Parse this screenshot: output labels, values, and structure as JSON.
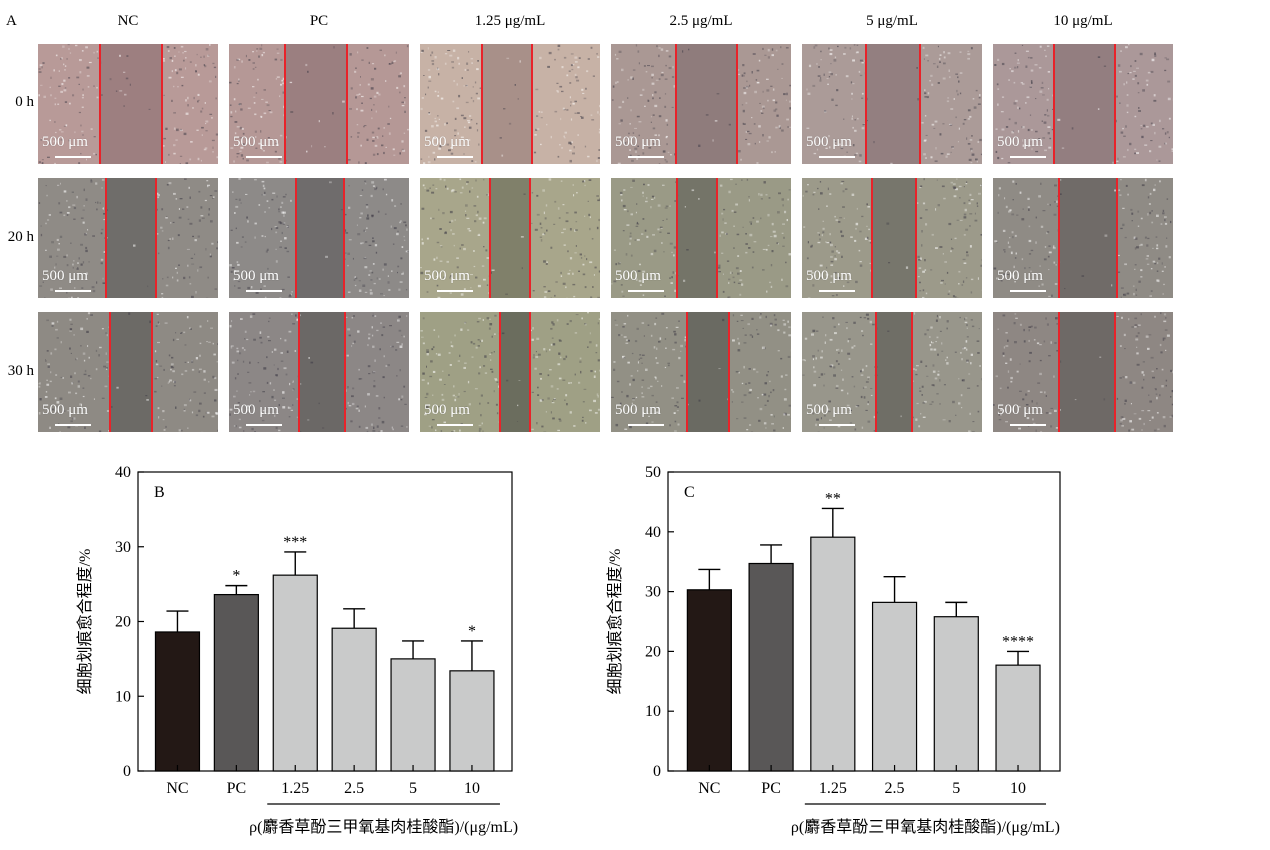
{
  "figure_a": {
    "panel_label": "A",
    "columns": [
      "NC",
      "PC",
      "1.25 μg/mL",
      "2.5 μg/mL",
      "5 μg/mL",
      "10 μg/mL"
    ],
    "rows": [
      "0 h",
      "20 h",
      "30 h"
    ],
    "scale_bar": "500 μm",
    "wound_line_color": "#e8232a",
    "row_tones": [
      [
        "#b89a98",
        "#b59896",
        "#c7b2a6",
        "#aa9894",
        "#ab9b98",
        "#ab9899"
      ],
      [
        "#8f8b86",
        "#8d8a88",
        "#a8a68b",
        "#9a9a86",
        "#9c9a8a",
        "#8f8b85"
      ],
      [
        "#8e8a84",
        "#8c8786",
        "#9fa085",
        "#929085",
        "#98968b",
        "#8e8783"
      ]
    ],
    "wound_tones": [
      [
        "#9d7f80",
        "#9b7f80",
        "#a89089",
        "#8f7c7c",
        "#937f80",
        "#937e80"
      ],
      [
        "#6f6d6a",
        "#6f6c6c",
        "#80806a",
        "#747468",
        "#77766c",
        "#706b68"
      ],
      [
        "#6c6a66",
        "#6b6866",
        "#6b6d5e",
        "#6a6a62",
        "#6f6e66",
        "#6e6966"
      ]
    ]
  },
  "chart_data": [
    {
      "type": "bar",
      "panel_label": "B",
      "categories": [
        "NC",
        "PC",
        "1.25",
        "2.5",
        "5",
        "10"
      ],
      "values": [
        18.6,
        23.6,
        26.2,
        19.1,
        15.0,
        13.4
      ],
      "errors": [
        2.8,
        1.2,
        3.1,
        2.6,
        2.4,
        4.0
      ],
      "significance": [
        "",
        "*",
        "***",
        "",
        "",
        "*"
      ],
      "bar_colors": [
        "#231815",
        "#595757",
        "#c9caca",
        "#c9caca",
        "#c9caca",
        "#c9caca"
      ],
      "ylabel": "细胞划痕愈合程度/%",
      "xlabel": "ρ(麝香草酚三甲氧基肉桂酸酯)/(μg/mL)",
      "ylim": [
        0,
        40
      ],
      "yticks": [
        0,
        10,
        20,
        30,
        40
      ],
      "grid": false
    },
    {
      "type": "bar",
      "panel_label": "C",
      "categories": [
        "NC",
        "PC",
        "1.25",
        "2.5",
        "5",
        "10"
      ],
      "values": [
        30.3,
        34.7,
        39.1,
        28.2,
        25.8,
        17.7
      ],
      "errors": [
        3.4,
        3.1,
        4.8,
        4.3,
        2.4,
        2.3
      ],
      "significance": [
        "",
        "",
        "**",
        "",
        "",
        "****"
      ],
      "bar_colors": [
        "#231815",
        "#595757",
        "#c9caca",
        "#c9caca",
        "#c9caca",
        "#c9caca"
      ],
      "ylabel": "细胞划痕愈合程度/%",
      "xlabel": "ρ(麝香草酚三甲氧基肉桂酸酯)/(μg/mL)",
      "ylim": [
        0,
        50
      ],
      "yticks": [
        0,
        10,
        20,
        30,
        40,
        50
      ],
      "grid": false
    }
  ]
}
